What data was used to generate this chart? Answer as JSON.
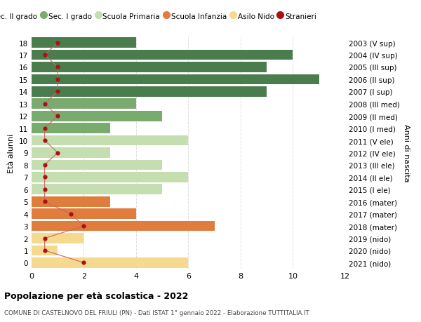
{
  "ages": [
    18,
    17,
    16,
    15,
    14,
    13,
    12,
    11,
    10,
    9,
    8,
    7,
    6,
    5,
    4,
    3,
    2,
    1,
    0
  ],
  "right_labels": [
    "2003 (V sup)",
    "2004 (IV sup)",
    "2005 (III sup)",
    "2006 (II sup)",
    "2007 (I sup)",
    "2008 (III med)",
    "2009 (II med)",
    "2010 (I med)",
    "2011 (V ele)",
    "2012 (IV ele)",
    "2013 (III ele)",
    "2014 (II ele)",
    "2015 (I ele)",
    "2016 (mater)",
    "2017 (mater)",
    "2018 (mater)",
    "2019 (nido)",
    "2020 (nido)",
    "2021 (nido)"
  ],
  "bar_values": [
    4,
    10,
    9,
    11,
    9,
    4,
    5,
    3,
    6,
    3,
    5,
    6,
    5,
    3,
    4,
    7,
    2,
    1,
    6
  ],
  "bar_colors": [
    "#4a7c4e",
    "#4a7c4e",
    "#4a7c4e",
    "#4a7c4e",
    "#4a7c4e",
    "#7aab6e",
    "#7aab6e",
    "#7aab6e",
    "#c5deb0",
    "#c5deb0",
    "#c5deb0",
    "#c5deb0",
    "#c5deb0",
    "#e07c3c",
    "#e07c3c",
    "#e07c3c",
    "#f5d98e",
    "#f5d98e",
    "#f5d98e"
  ],
  "stranieri_x": [
    1.0,
    0.5,
    1.0,
    1.0,
    1.0,
    0.5,
    1.0,
    0.5,
    0.5,
    1.0,
    0.5,
    0.5,
    0.5,
    0.5,
    1.5,
    2.0,
    0.5,
    0.5,
    2.0
  ],
  "legend_labels": [
    "Sec. II grado",
    "Sec. I grado",
    "Scuola Primaria",
    "Scuola Infanzia",
    "Asilo Nido",
    "Stranieri"
  ],
  "legend_colors": [
    "#4a7c4e",
    "#7aab6e",
    "#c5deb0",
    "#e07c3c",
    "#f5d98e",
    "#aa1111"
  ],
  "title": "Popolazione per età scolastica - 2022",
  "subtitle": "COMUNE DI CASTELNOVO DEL FRIULI (PN) - Dati ISTAT 1° gennaio 2022 - Elaborazione TUTTITALIA.IT",
  "ylabel_left": "Età alunni",
  "ylabel_right": "Anni di nascita",
  "xlim": [
    0,
    12
  ],
  "ylim": [
    -0.5,
    18.5
  ],
  "bg_color": "#ffffff",
  "grid_color": "#dddddd",
  "bar_height": 0.85,
  "stranieri_color": "#aa1111",
  "stranieri_line_color": "#cc6666"
}
